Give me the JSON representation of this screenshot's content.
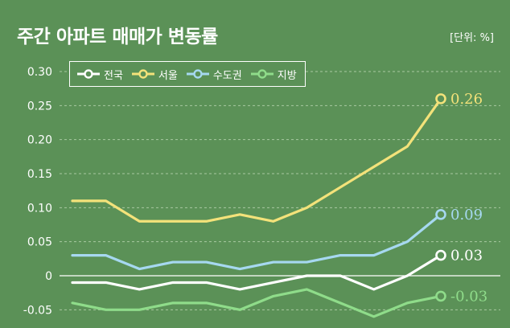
{
  "title": "주간 아파트 매매가 변동률",
  "unit_label": "[단위: %]",
  "chart_data": {
    "type": "line",
    "title": "주간 아파트 매매가 변동률",
    "unit": "[단위: %]",
    "ylim": [
      -0.06,
      0.3
    ],
    "y_ticks": [
      {
        "value": 0.3,
        "label": "0.30"
      },
      {
        "value": 0.25,
        "label": "0.25"
      },
      {
        "value": 0.2,
        "label": "0.20"
      },
      {
        "value": 0.15,
        "label": "0.15"
      },
      {
        "value": 0.1,
        "label": "0.10"
      },
      {
        "value": 0.05,
        "label": "0.05"
      },
      {
        "value": 0,
        "label": "0"
      },
      {
        "value": -0.05,
        "label": "-0.05"
      }
    ],
    "grid": true,
    "legend_position": "top-left",
    "series": [
      {
        "name": "전국",
        "color": "#ffffff",
        "end_label": "0.03",
        "values": [
          -0.01,
          -0.01,
          -0.02,
          -0.01,
          -0.01,
          -0.02,
          -0.01,
          0.0,
          0.0,
          -0.02,
          0.0,
          0.03
        ]
      },
      {
        "name": "서울",
        "color": "#f3e27a",
        "end_label": "0.26",
        "values": [
          0.11,
          0.11,
          0.08,
          0.08,
          0.08,
          0.09,
          0.08,
          0.1,
          0.13,
          0.16,
          0.19,
          0.26
        ]
      },
      {
        "name": "수도권",
        "color": "#a6d8f0",
        "end_label": "0.09",
        "values": [
          0.03,
          0.03,
          0.01,
          0.02,
          0.02,
          0.01,
          0.02,
          0.02,
          0.03,
          0.03,
          0.05,
          0.09
        ]
      },
      {
        "name": "지방",
        "color": "#8fdc8a",
        "end_label": "-0.03",
        "values": [
          -0.04,
          -0.05,
          -0.05,
          -0.04,
          -0.04,
          -0.05,
          -0.03,
          -0.02,
          -0.04,
          -0.06,
          -0.04,
          -0.03
        ]
      }
    ]
  }
}
